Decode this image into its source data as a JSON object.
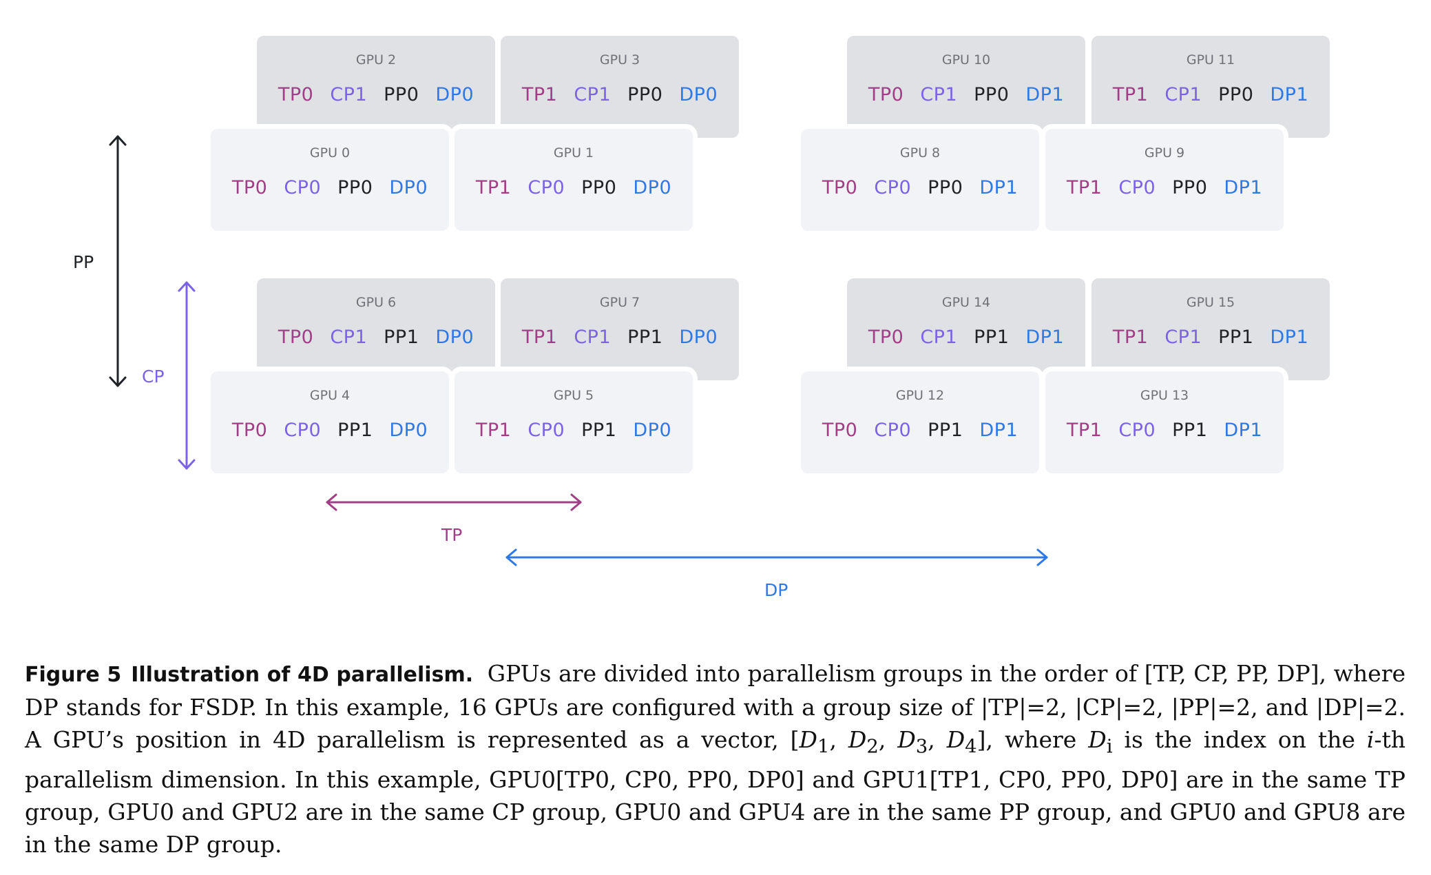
{
  "colors": {
    "tp": "#a23e86",
    "cp": "#7c63e6",
    "pp": "#1f2226",
    "dp": "#2f78e6",
    "card_back": "#dfe1e5",
    "card_front": "#f2f3f6"
  },
  "gpus": [
    {
      "name": "GPU 0",
      "tp": "TP0",
      "cp": "CP0",
      "pp": "PP0",
      "dp": "DP0"
    },
    {
      "name": "GPU 1",
      "tp": "TP1",
      "cp": "CP0",
      "pp": "PP0",
      "dp": "DP0"
    },
    {
      "name": "GPU 2",
      "tp": "TP0",
      "cp": "CP1",
      "pp": "PP0",
      "dp": "DP0"
    },
    {
      "name": "GPU 3",
      "tp": "TP1",
      "cp": "CP1",
      "pp": "PP0",
      "dp": "DP0"
    },
    {
      "name": "GPU 4",
      "tp": "TP0",
      "cp": "CP0",
      "pp": "PP1",
      "dp": "DP0"
    },
    {
      "name": "GPU 5",
      "tp": "TP1",
      "cp": "CP0",
      "pp": "PP1",
      "dp": "DP0"
    },
    {
      "name": "GPU 6",
      "tp": "TP0",
      "cp": "CP1",
      "pp": "PP1",
      "dp": "DP0"
    },
    {
      "name": "GPU 7",
      "tp": "TP1",
      "cp": "CP1",
      "pp": "PP1",
      "dp": "DP0"
    },
    {
      "name": "GPU 8",
      "tp": "TP0",
      "cp": "CP0",
      "pp": "PP0",
      "dp": "DP1"
    },
    {
      "name": "GPU 9",
      "tp": "TP1",
      "cp": "CP0",
      "pp": "PP0",
      "dp": "DP1"
    },
    {
      "name": "GPU 10",
      "tp": "TP0",
      "cp": "CP1",
      "pp": "PP0",
      "dp": "DP1"
    },
    {
      "name": "GPU 11",
      "tp": "TP1",
      "cp": "CP1",
      "pp": "PP0",
      "dp": "DP1"
    },
    {
      "name": "GPU 12",
      "tp": "TP0",
      "cp": "CP0",
      "pp": "PP1",
      "dp": "DP1"
    },
    {
      "name": "GPU 13",
      "tp": "TP1",
      "cp": "CP0",
      "pp": "PP1",
      "dp": "DP1"
    },
    {
      "name": "GPU 14",
      "tp": "TP0",
      "cp": "CP1",
      "pp": "PP1",
      "dp": "DP1"
    },
    {
      "name": "GPU 15",
      "tp": "TP1",
      "cp": "CP1",
      "pp": "PP1",
      "dp": "DP1"
    }
  ],
  "axes": {
    "pp": "PP",
    "cp": "CP",
    "tp": "TP",
    "dp": "DP"
  },
  "caption": {
    "label": "Figure 5",
    "title": "Illustration of 4D parallelism.",
    "p1": "GPUs are divided into parallelism groups in the order of [TP, CP, PP, DP], where DP stands for FSDP. In this example, 16 GPUs are configured with a group size of |TP|=2, |CP|=2, |PP|=2, and |DP|=2. A GPU’s position in 4D parallelism is represented as a vector, [",
    "d1": "D",
    "s1": "1",
    "c1": ", ",
    "d2": "D",
    "s2": "2",
    "c2": ", ",
    "d3": "D",
    "s3": "3",
    "c3": ", ",
    "d4": "D",
    "s4": "4",
    "p2": "], where ",
    "di": "D",
    "si": "i",
    "p3": " is the index on the ",
    "ith": "i",
    "p4": "-th parallelism dimension. In this example, GPU0[TP0, CP0, PP0, DP0] and GPU1[TP1, CP0, PP0, DP0] are in the same TP group, GPU0 and GPU2 are in the same CP group, GPU0 and GPU4 are in the same PP group, and GPU0 and GPU8 are in the same DP group."
  }
}
